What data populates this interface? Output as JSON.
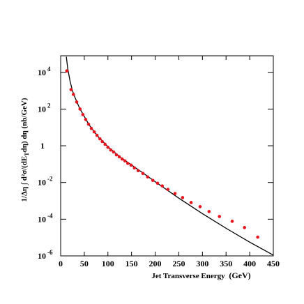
{
  "chart_data": {
    "type": "scatter",
    "ylabel": [
      "1/Δη ∫ d²σ/(dE",
      "T",
      "dη) dη (nb/GeV)"
    ],
    "xlabel": "Jet Transverse Energy",
    "xunit": "(GeV)",
    "x": [
      13,
      22,
      27,
      34,
      41,
      47,
      53,
      59,
      65,
      71,
      77,
      83,
      88,
      94,
      100,
      106,
      112,
      118,
      124,
      130,
      136,
      142,
      149,
      156,
      164,
      174,
      184,
      195,
      205,
      215,
      227,
      242,
      258,
      276,
      295,
      314,
      336,
      363,
      389,
      417
    ],
    "values": [
      12000,
      1150,
      630,
      240,
      100,
      50,
      27,
      15,
      8.8,
      5.7,
      3.7,
      2.4,
      1.7,
      1.2,
      0.83,
      0.59,
      0.46,
      0.32,
      0.25,
      0.19,
      0.15,
      0.11,
      0.088,
      0.062,
      0.044,
      0.031,
      0.02,
      0.013,
      0.0091,
      0.0065,
      0.0042,
      0.0025,
      0.0015,
      0.00081,
      0.00048,
      0.00026,
      0.00014,
      7.7e-05,
      3.5e-05,
      1.05e-05
    ],
    "color": "#e8141e",
    "fit": {
      "color": "#000000",
      "x": [
        12,
        15,
        20,
        25,
        30,
        40,
        50,
        60,
        70,
        80,
        100,
        125,
        150,
        175,
        200,
        250,
        300,
        350,
        400,
        450
      ],
      "values": [
        71000,
        16000,
        3200,
        1000,
        450,
        112,
        40,
        14,
        6.3,
        3.0,
        0.89,
        0.25,
        0.089,
        0.032,
        0.011,
        0.0014,
        0.0002,
        3.2e-05,
        5.6e-06,
        1.1e-06
      ]
    },
    "xlim": [
      0,
      450
    ],
    "xticks": [
      0,
      50,
      100,
      150,
      200,
      250,
      300,
      350,
      400,
      450
    ],
    "ylim": [
      1e-06,
      80000
    ],
    "log_y": true,
    "yticks": [
      {
        "value": 1e-06,
        "label": "10",
        "exponent": "-6"
      },
      {
        "value": 0.0001,
        "label": "10",
        "exponent": "-4"
      },
      {
        "value": 0.01,
        "label": "10",
        "exponent": "-2"
      },
      1,
      {
        "value": 100,
        "label": "10",
        "exponent": "2"
      },
      {
        "value": 10000,
        "label": "10",
        "exponent": "4"
      }
    ]
  }
}
